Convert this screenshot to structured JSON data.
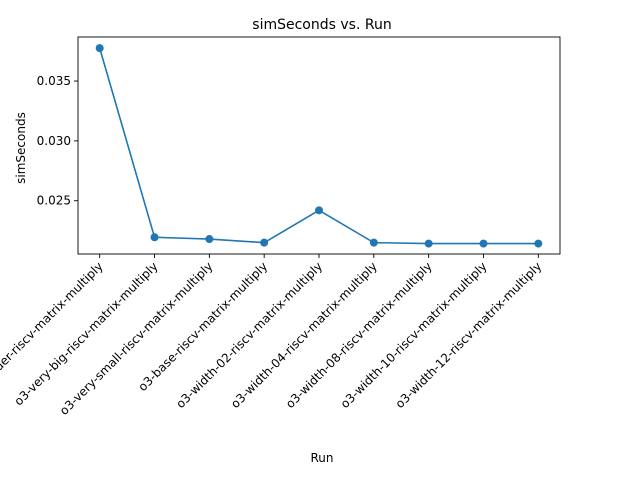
{
  "chart_data": {
    "type": "line",
    "title": "simSeconds vs. Run",
    "xlabel": "Run",
    "ylabel": "simSeconds",
    "categories": [
      "inorder-riscv-matrix-multiply",
      "o3-very-big-riscv-matrix-multiply",
      "o3-very-small-riscv-matrix-multiply",
      "o3-base-riscv-matrix-multiply",
      "o3-width-02-riscv-matrix-multiply",
      "o3-width-04-riscv-matrix-multiply",
      "o3-width-08-riscv-matrix-multiply",
      "o3-width-10-riscv-matrix-multiply",
      "o3-width-12-riscv-matrix-multiply"
    ],
    "series": [
      {
        "values": [
          0.03775,
          0.02195,
          0.0218,
          0.0215,
          0.0242,
          0.0215,
          0.02142,
          0.02142,
          0.02142
        ],
        "color": "#1f77b4"
      }
    ],
    "ylim": [
      0.02055,
      0.03868
    ],
    "yticks": [
      0.025,
      0.03,
      0.035
    ],
    "ytick_labels": [
      "0.025",
      "0.030",
      "0.035"
    ],
    "grid": false,
    "legend": "none"
  }
}
